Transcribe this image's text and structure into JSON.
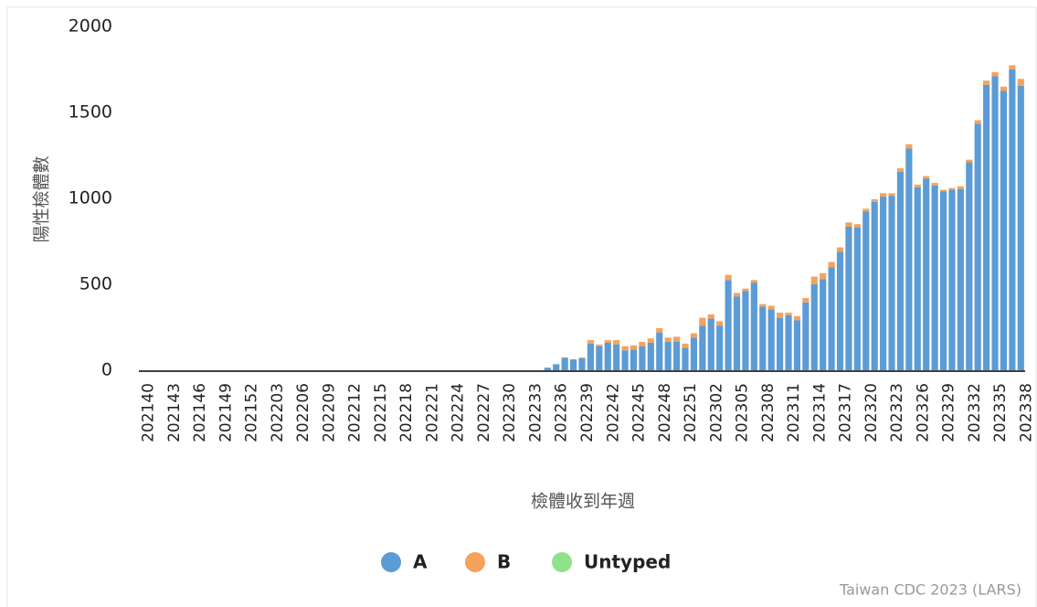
{
  "chart_data": {
    "type": "stacked-bar",
    "y_label": "陽性檢體數",
    "x_label": "檢體收到年週",
    "source": "Taiwan CDC 2023 (LARS)",
    "categories": [
      "202140",
      null,
      null,
      "202143",
      null,
      null,
      "202146",
      null,
      null,
      "202149",
      null,
      null,
      "202152",
      null,
      null,
      "202203",
      null,
      null,
      "202206",
      null,
      null,
      "202209",
      null,
      null,
      "202212",
      null,
      null,
      "202215",
      null,
      null,
      "202218",
      null,
      null,
      "202221",
      null,
      null,
      "202224",
      null,
      null,
      "202227",
      null,
      null,
      "202230",
      null,
      null,
      "202233",
      null,
      null,
      "202236",
      null,
      null,
      "202239",
      null,
      null,
      "202242",
      null,
      null,
      "202245",
      null,
      null,
      "202248",
      null,
      null,
      "202251",
      null,
      null,
      "202302",
      null,
      null,
      "202305",
      null,
      null,
      "202308",
      null,
      null,
      "202311",
      null,
      null,
      "202314",
      null,
      null,
      "202317",
      null,
      null,
      "202320",
      null,
      null,
      "202323",
      null,
      null,
      "202326",
      null,
      null,
      "202329",
      null,
      null,
      "202332",
      null,
      null,
      "202335",
      null,
      null,
      "202338"
    ],
    "series": [
      {
        "name": "A",
        "color": "#5b9bd6",
        "values": [
          0,
          0,
          0,
          0,
          0,
          0,
          0,
          0,
          0,
          0,
          0,
          0,
          0,
          0,
          0,
          0,
          0,
          0,
          0,
          0,
          0,
          0,
          0,
          0,
          0,
          0,
          0,
          0,
          0,
          0,
          0,
          0,
          0,
          0,
          0,
          0,
          0,
          0,
          0,
          0,
          0,
          0,
          0,
          0,
          0,
          0,
          0,
          15,
          35,
          73,
          62,
          70,
          155,
          140,
          160,
          150,
          115,
          120,
          140,
          160,
          220,
          165,
          165,
          130,
          190,
          260,
          300,
          260,
          525,
          430,
          460,
          510,
          370,
          355,
          305,
          320,
          290,
          395,
          500,
          530,
          600,
          690,
          835,
          830,
          925,
          980,
          1010,
          1015,
          1155,
          1290,
          1065,
          1115,
          1075,
          1040,
          1050,
          1055,
          1210,
          1435,
          1660,
          1710,
          1625,
          1750,
          1655
        ]
      },
      {
        "name": "B",
        "color": "#f5a25d",
        "values": [
          0,
          0,
          0,
          0,
          0,
          0,
          0,
          0,
          0,
          0,
          0,
          0,
          0,
          0,
          0,
          0,
          0,
          0,
          0,
          0,
          0,
          0,
          0,
          0,
          0,
          0,
          0,
          0,
          0,
          0,
          0,
          0,
          0,
          0,
          0,
          0,
          0,
          0,
          0,
          0,
          0,
          0,
          0,
          0,
          0,
          0,
          0,
          0,
          0,
          2,
          3,
          5,
          20,
          10,
          15,
          25,
          25,
          25,
          25,
          25,
          25,
          25,
          30,
          25,
          25,
          45,
          25,
          25,
          30,
          20,
          15,
          15,
          15,
          20,
          30,
          15,
          25,
          25,
          45,
          35,
          30,
          25,
          25,
          20,
          15,
          15,
          20,
          15,
          20,
          25,
          15,
          15,
          15,
          10,
          10,
          15,
          15,
          20,
          25,
          25,
          25,
          25,
          40
        ]
      },
      {
        "name": "Untyped",
        "color": "#8fe28a",
        "values": [
          0,
          0,
          0,
          0,
          0,
          0,
          0,
          0,
          0,
          0,
          0,
          0,
          0,
          0,
          0,
          0,
          0,
          0,
          0,
          0,
          0,
          0,
          0,
          0,
          0,
          0,
          0,
          0,
          0,
          0,
          0,
          0,
          0,
          0,
          0,
          0,
          0,
          0,
          0,
          0,
          0,
          0,
          0,
          0,
          0,
          0,
          0,
          0,
          0,
          0,
          0,
          0,
          0,
          0,
          0,
          0,
          0,
          0,
          0,
          0,
          0,
          0,
          0,
          0,
          0,
          0,
          0,
          0,
          0,
          0,
          0,
          0,
          0,
          0,
          0,
          0,
          0,
          0,
          0,
          0,
          0,
          0,
          0,
          0,
          0,
          0,
          0,
          0,
          0,
          0,
          0,
          0,
          0,
          0,
          0,
          0,
          0,
          0,
          0,
          0,
          0,
          0,
          0
        ]
      }
    ],
    "ylim": [
      0,
      2000
    ],
    "yticks": [
      0,
      500,
      1000,
      1500,
      2000
    ],
    "grid": false
  }
}
